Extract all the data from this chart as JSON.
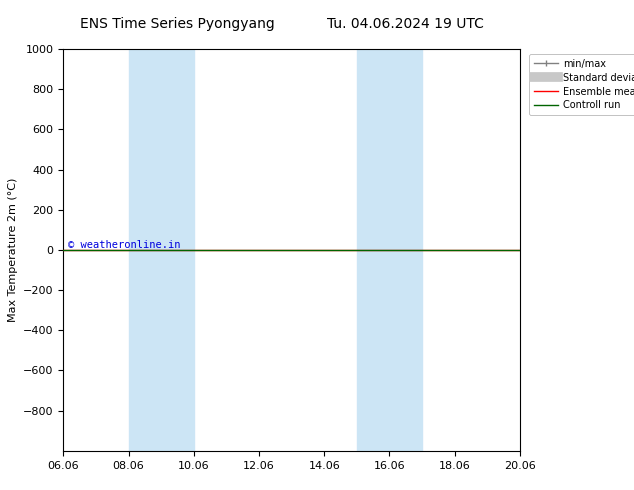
{
  "title_left": "ENS Time Series Pyongyang",
  "title_right": "Tu. 04.06.2024 19 UTC",
  "ylabel": "Max Temperature 2m (°C)",
  "ylim_top": -1000,
  "ylim_bottom": 1000,
  "yticks": [
    -800,
    -600,
    -400,
    -200,
    0,
    200,
    400,
    600,
    800,
    1000
  ],
  "xlabel_labels": [
    "06.06",
    "08.06",
    "10.06",
    "12.06",
    "14.06",
    "16.06",
    "18.06",
    "20.06"
  ],
  "xtick_positions": [
    0,
    2,
    4,
    6,
    8,
    10,
    12,
    14
  ],
  "xlim": [
    0,
    14
  ],
  "shaded_regions": [
    {
      "xmin": 2,
      "xmax": 4,
      "color": "#cce5f5"
    },
    {
      "xmin": 9,
      "xmax": 11,
      "color": "#cce5f5"
    }
  ],
  "watermark": "© weatheronline.in",
  "watermark_color": "#0000dd",
  "ensemble_mean_color": "#ff0000",
  "control_run_color": "#006400",
  "std_dev_color": "#c8c8c8",
  "minmax_color": "#808080",
  "line_y": 0,
  "background_color": "#ffffff",
  "legend_items": [
    {
      "label": "min/max",
      "color": "#808080",
      "lw": 1
    },
    {
      "label": "Standard deviation",
      "color": "#c8c8c8",
      "lw": 6
    },
    {
      "label": "Ensemble mean run",
      "color": "#ff0000",
      "lw": 1
    },
    {
      "label": "Controll run",
      "color": "#006400",
      "lw": 1
    }
  ]
}
